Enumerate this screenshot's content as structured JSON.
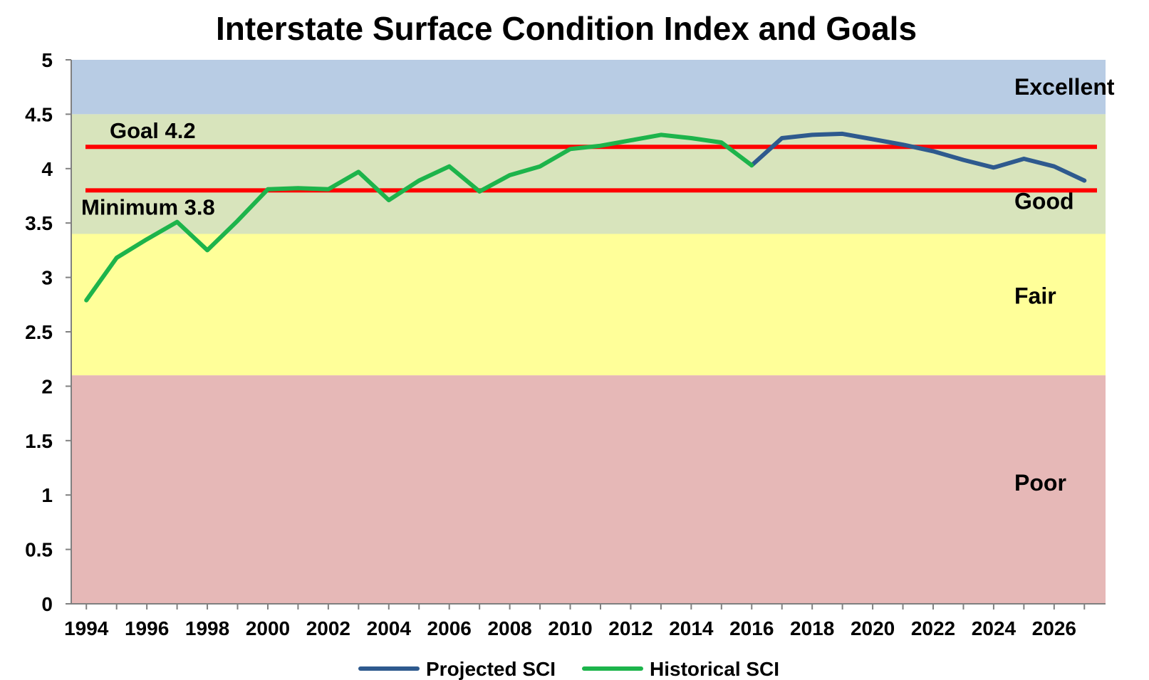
{
  "chart_data": {
    "type": "line",
    "title": "Interstate Surface Condition Index and Goals",
    "xlabel": "",
    "ylabel": "",
    "xlim": [
      1993.5,
      2027.7
    ],
    "ylim": [
      0,
      5
    ],
    "x_ticks": [
      "1994",
      "1996",
      "1998",
      "2000",
      "2002",
      "2004",
      "2006",
      "2008",
      "2010",
      "2012",
      "2014",
      "2016",
      "2018",
      "2020",
      "2022",
      "2024",
      "2026"
    ],
    "x_tick_values": [
      1994,
      1996,
      1998,
      2000,
      2002,
      2004,
      2006,
      2008,
      2010,
      2012,
      2014,
      2016,
      2018,
      2020,
      2022,
      2024,
      2026
    ],
    "y_ticks": [
      "0",
      "0.5",
      "1",
      "1.5",
      "2",
      "2.5",
      "3",
      "3.5",
      "4",
      "4.5",
      "5"
    ],
    "y_tick_values": [
      0,
      0.5,
      1,
      1.5,
      2,
      2.5,
      3,
      3.5,
      4,
      4.5,
      5
    ],
    "bands": [
      {
        "label": "Excellent",
        "from": 4.5,
        "to": 5.0,
        "color": "#b8cce4"
      },
      {
        "label": "Good",
        "from": 3.4,
        "to": 4.5,
        "color": "#d8e4bc"
      },
      {
        "label": "Fair",
        "from": 2.1,
        "to": 3.4,
        "color": "#ffff99"
      },
      {
        "label": "Poor",
        "from": 0.0,
        "to": 2.1,
        "color": "#e6b8b7"
      }
    ],
    "reference_lines": [
      {
        "label": "Goal 4.2",
        "value": 4.2,
        "color": "#ff0000"
      },
      {
        "label": "Minimum 3.8",
        "value": 3.8,
        "color": "#ff0000"
      }
    ],
    "series": [
      {
        "name": "Projected SCI",
        "color": "#2e5a8e",
        "x": [
          2016,
          2017,
          2018,
          2019,
          2020,
          2021,
          2022,
          2023,
          2024,
          2025,
          2026,
          2027
        ],
        "y": [
          4.03,
          4.28,
          4.31,
          4.32,
          4.27,
          4.22,
          4.16,
          4.08,
          4.01,
          4.09,
          4.02,
          3.89
        ]
      },
      {
        "name": "Historical SCI",
        "color": "#1db44b",
        "x": [
          1994,
          1995,
          1996,
          1997,
          1998,
          1999,
          2000,
          2001,
          2002,
          2003,
          2004,
          2005,
          2006,
          2007,
          2008,
          2009,
          2010,
          2011,
          2012,
          2013,
          2014,
          2015,
          2016
        ],
        "y": [
          2.79,
          3.18,
          3.35,
          3.51,
          3.25,
          3.52,
          3.81,
          3.82,
          3.81,
          3.97,
          3.71,
          3.89,
          4.02,
          3.79,
          3.94,
          4.02,
          4.18,
          4.21,
          4.26,
          4.31,
          4.28,
          4.24,
          4.03
        ]
      }
    ],
    "legend": {
      "position": "bottom-center",
      "order": [
        "Projected SCI",
        "Historical SCI"
      ]
    },
    "grid": false
  }
}
